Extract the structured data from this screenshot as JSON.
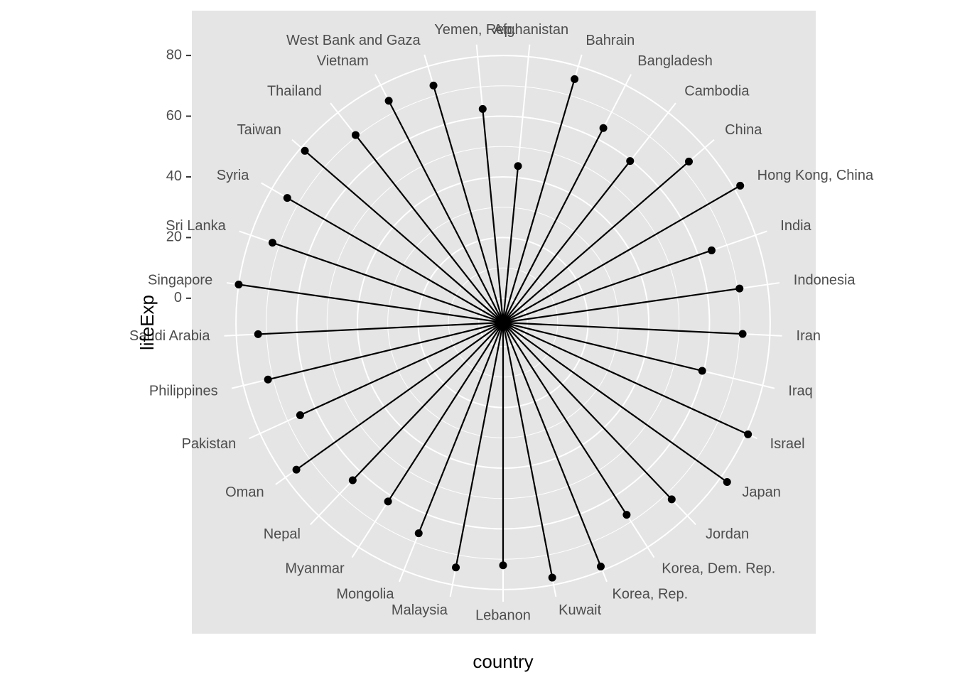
{
  "chart_data": {
    "type": "lollipop-polar",
    "xlabel": "country",
    "ylabel": "lifeExp",
    "ylim": [
      -8,
      84
    ],
    "y_ticks": [
      0,
      20,
      40,
      60,
      80
    ],
    "grid": true,
    "categories": [
      "Afghanistan",
      "Bahrain",
      "Bangladesh",
      "Cambodia",
      "China",
      "Hong Kong, China",
      "India",
      "Indonesia",
      "Iran",
      "Iraq",
      "Israel",
      "Japan",
      "Jordan",
      "Korea, Dem. Rep.",
      "Korea, Rep.",
      "Kuwait",
      "Lebanon",
      "Malaysia",
      "Mongolia",
      "Myanmar",
      "Nepal",
      "Oman",
      "Pakistan",
      "Philippines",
      "Saudi Arabia",
      "Singapore",
      "Sri Lanka",
      "Syria",
      "Taiwan",
      "Thailand",
      "Vietnam",
      "West Bank and Gaza",
      "Yemen, Rep."
    ],
    "values": [
      43.8,
      75.6,
      64.1,
      59.7,
      73.0,
      82.2,
      64.7,
      70.7,
      71.0,
      59.5,
      80.7,
      82.6,
      72.5,
      67.3,
      78.6,
      77.6,
      72.0,
      74.2,
      66.8,
      62.1,
      63.8,
      75.6,
      65.5,
      71.7,
      72.8,
      80.0,
      72.4,
      74.1,
      78.4,
      70.6,
      74.2,
      73.4,
      62.7
    ],
    "colors": {
      "panel_background": "#e5e5e5",
      "grid": "#ffffff",
      "segment": "#000000",
      "point": "#000000"
    }
  }
}
